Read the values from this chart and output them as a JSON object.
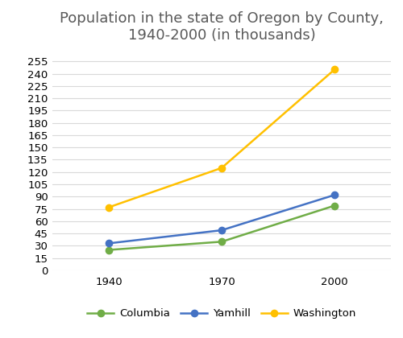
{
  "title": "Population in the state of Oregon by County,\n1940-2000 (in thousands)",
  "years": [
    1940,
    1970,
    2000
  ],
  "series": [
    {
      "name": "Columbia",
      "values": [
        25,
        35,
        79
      ],
      "color": "#70ad47",
      "marker": "o"
    },
    {
      "name": "Yamhill",
      "values": [
        33,
        49,
        92
      ],
      "color": "#4472c4",
      "marker": "o"
    },
    {
      "name": "Washington",
      "values": [
        77,
        125,
        245
      ],
      "color": "#ffc000",
      "marker": "o"
    }
  ],
  "yticks": [
    0,
    15,
    30,
    45,
    60,
    75,
    90,
    105,
    120,
    135,
    150,
    165,
    180,
    195,
    210,
    225,
    240,
    255
  ],
  "ylim": [
    0,
    268
  ],
  "xlim_left": 1925,
  "xlim_right": 2015,
  "background_color": "#ffffff",
  "title_color": "#595959",
  "title_fontsize": 13,
  "legend_fontsize": 9.5,
  "tick_fontsize": 9.5,
  "grid_color": "#d9d9d9",
  "line_width": 1.8,
  "marker_size": 6
}
